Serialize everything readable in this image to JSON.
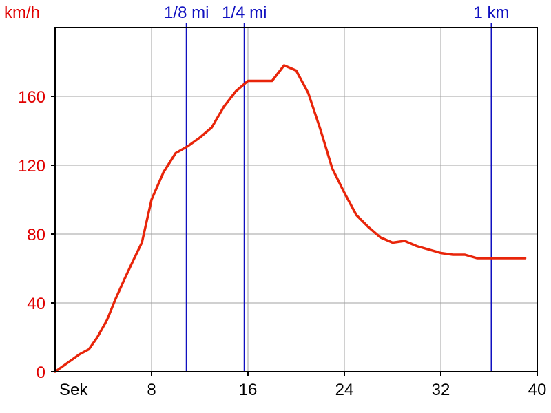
{
  "chart_data": {
    "type": "line",
    "ylabel": "km/h",
    "xlabel": "Sek",
    "xlim": [
      0,
      40
    ],
    "ylim": [
      0,
      200
    ],
    "x_ticks": [
      8,
      16,
      24,
      32,
      40
    ],
    "y_ticks": [
      0,
      40,
      80,
      120,
      160
    ],
    "grid": true,
    "colors": {
      "series": "#e8250a",
      "markers": "#1010c0",
      "grid": "#a0a0a0",
      "axis": "#000000",
      "y_tick_text": "#e00000"
    },
    "series": [
      {
        "x": [
          0,
          1,
          2,
          2.8,
          3.5,
          4.3,
          5,
          5.7,
          6.5,
          7.2,
          8,
          9,
          10,
          11,
          12,
          13,
          14,
          15,
          16,
          17,
          18,
          19,
          20,
          21,
          22,
          23,
          24,
          25,
          26,
          27,
          28,
          29,
          30,
          31,
          32,
          33,
          34,
          35,
          36,
          37,
          38,
          39
        ],
        "y": [
          0,
          5,
          10,
          13,
          20,
          30,
          42,
          53,
          65,
          75,
          100,
          116,
          127,
          131,
          136,
          142,
          154,
          163,
          169,
          169,
          169,
          178,
          175,
          162,
          141,
          118,
          104,
          91,
          84,
          78,
          75,
          76,
          73,
          71,
          69,
          68,
          68,
          66,
          66,
          66,
          66,
          66
        ]
      }
    ],
    "markers": [
      {
        "label": "1/8 mi",
        "x": 10.9
      },
      {
        "label": "1/4 mi",
        "x": 15.7
      },
      {
        "label": "1 km",
        "x": 36.2
      }
    ]
  }
}
